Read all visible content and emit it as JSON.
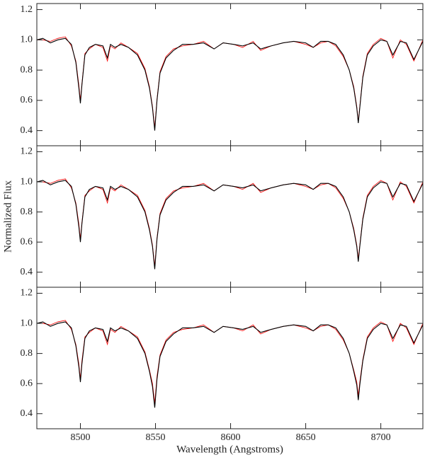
{
  "chart_data": [
    {
      "type": "line",
      "x": [
        8471,
        8475,
        8480,
        8485,
        8490,
        8494,
        8497,
        8499,
        8500,
        8501,
        8503,
        8506,
        8510,
        8515,
        8518,
        8520,
        8523,
        8527,
        8532,
        8538,
        8543,
        8546,
        8548,
        8549.5,
        8551,
        8553,
        8557,
        8562,
        8568,
        8575,
        8582,
        8589,
        8595,
        8602,
        8608,
        8615,
        8620,
        8627,
        8635,
        8642,
        8650,
        8655,
        8660,
        8665,
        8670,
        8675,
        8679,
        8682,
        8684,
        8685,
        8686,
        8688,
        8691,
        8695,
        8700,
        8704,
        8708,
        8713,
        8717,
        8722,
        8728
      ],
      "series": [
        {
          "color": "#000000",
          "values": [
            1.0,
            1.01,
            0.98,
            1.0,
            1.01,
            0.97,
            0.85,
            0.68,
            0.58,
            0.7,
            0.9,
            0.95,
            0.97,
            0.96,
            0.88,
            0.97,
            0.95,
            0.97,
            0.95,
            0.9,
            0.8,
            0.68,
            0.55,
            0.4,
            0.6,
            0.78,
            0.88,
            0.93,
            0.97,
            0.97,
            0.98,
            0.94,
            0.98,
            0.97,
            0.96,
            0.98,
            0.94,
            0.96,
            0.98,
            0.99,
            0.98,
            0.95,
            0.99,
            0.99,
            0.97,
            0.9,
            0.8,
            0.68,
            0.55,
            0.45,
            0.55,
            0.75,
            0.9,
            0.96,
            1.0,
            0.99,
            0.9,
            0.99,
            0.98,
            0.87,
            0.99
          ]
        },
        {
          "color": "#ff0000",
          "values": [
            1.0,
            1.0,
            0.99,
            1.01,
            1.02,
            0.96,
            0.86,
            0.7,
            0.6,
            0.71,
            0.91,
            0.94,
            0.97,
            0.95,
            0.86,
            0.96,
            0.94,
            0.98,
            0.95,
            0.91,
            0.81,
            0.69,
            0.56,
            0.42,
            0.61,
            0.79,
            0.89,
            0.94,
            0.96,
            0.97,
            0.99,
            0.94,
            0.98,
            0.97,
            0.95,
            0.99,
            0.93,
            0.96,
            0.98,
            0.99,
            0.97,
            0.95,
            0.98,
            0.99,
            0.96,
            0.89,
            0.8,
            0.69,
            0.56,
            0.46,
            0.56,
            0.76,
            0.91,
            0.97,
            1.01,
            0.99,
            0.88,
            1.0,
            0.97,
            0.86,
            1.0
          ]
        }
      ],
      "xlim": [
        8471,
        8728
      ],
      "xticks": [
        8500,
        8550,
        8600,
        8650,
        8700
      ],
      "ylim": [
        0.3,
        1.24
      ],
      "yticks": [
        0.4,
        0.6,
        0.8,
        {
          "value": 1,
          "label": "1.0"
        },
        1.2
      ]
    },
    {
      "type": "line",
      "x": [
        8471,
        8475,
        8480,
        8485,
        8490,
        8494,
        8497,
        8499,
        8500,
        8501,
        8503,
        8506,
        8510,
        8515,
        8518,
        8520,
        8523,
        8527,
        8532,
        8538,
        8543,
        8546,
        8548,
        8549.5,
        8551,
        8553,
        8557,
        8562,
        8568,
        8575,
        8582,
        8589,
        8595,
        8602,
        8608,
        8615,
        8620,
        8627,
        8635,
        8642,
        8650,
        8655,
        8660,
        8665,
        8670,
        8675,
        8679,
        8682,
        8684,
        8685,
        8686,
        8688,
        8691,
        8695,
        8700,
        8704,
        8708,
        8713,
        8717,
        8722,
        8728
      ],
      "ylabel": "Normalized Flux",
      "series": [
        {
          "color": "#000000",
          "values": [
            1.0,
            1.01,
            0.98,
            1.0,
            1.01,
            0.97,
            0.85,
            0.7,
            0.6,
            0.72,
            0.9,
            0.95,
            0.97,
            0.96,
            0.88,
            0.97,
            0.95,
            0.97,
            0.95,
            0.9,
            0.8,
            0.68,
            0.57,
            0.42,
            0.62,
            0.78,
            0.88,
            0.93,
            0.97,
            0.97,
            0.98,
            0.94,
            0.98,
            0.97,
            0.96,
            0.98,
            0.94,
            0.96,
            0.98,
            0.99,
            0.98,
            0.95,
            0.99,
            0.99,
            0.97,
            0.9,
            0.8,
            0.68,
            0.57,
            0.47,
            0.57,
            0.75,
            0.9,
            0.96,
            1.0,
            0.99,
            0.9,
            0.99,
            0.98,
            0.87,
            0.99
          ]
        },
        {
          "color": "#ff0000",
          "values": [
            1.0,
            1.0,
            0.99,
            1.01,
            1.02,
            0.96,
            0.86,
            0.72,
            0.62,
            0.73,
            0.91,
            0.94,
            0.97,
            0.95,
            0.86,
            0.96,
            0.94,
            0.98,
            0.95,
            0.91,
            0.81,
            0.69,
            0.58,
            0.44,
            0.63,
            0.79,
            0.89,
            0.94,
            0.96,
            0.97,
            0.99,
            0.94,
            0.98,
            0.97,
            0.95,
            0.99,
            0.93,
            0.96,
            0.98,
            0.99,
            0.97,
            0.95,
            0.98,
            0.99,
            0.96,
            0.89,
            0.8,
            0.69,
            0.58,
            0.49,
            0.58,
            0.76,
            0.91,
            0.97,
            1.01,
            0.99,
            0.88,
            1.0,
            0.97,
            0.86,
            1.0
          ]
        }
      ],
      "xlim": [
        8471,
        8728
      ],
      "xticks": [
        8500,
        8550,
        8600,
        8650,
        8700
      ],
      "ylim": [
        0.3,
        1.24
      ],
      "yticks": [
        0.4,
        0.6,
        0.8,
        {
          "value": 1,
          "label": "1.0"
        },
        1.2
      ]
    },
    {
      "type": "line",
      "x": [
        8471,
        8475,
        8480,
        8485,
        8490,
        8494,
        8497,
        8499,
        8500,
        8501,
        8503,
        8506,
        8510,
        8515,
        8518,
        8520,
        8523,
        8527,
        8532,
        8538,
        8543,
        8546,
        8548,
        8549.5,
        8551,
        8553,
        8557,
        8562,
        8568,
        8575,
        8582,
        8589,
        8595,
        8602,
        8608,
        8615,
        8620,
        8627,
        8635,
        8642,
        8650,
        8655,
        8660,
        8665,
        8670,
        8675,
        8679,
        8682,
        8684,
        8685,
        8686,
        8688,
        8691,
        8695,
        8700,
        8704,
        8708,
        8713,
        8717,
        8722,
        8728
      ],
      "xlabel": "Wavelength (Angstroms)",
      "series": [
        {
          "color": "#000000",
          "values": [
            1.0,
            1.01,
            0.98,
            1.0,
            1.01,
            0.97,
            0.85,
            0.71,
            0.61,
            0.73,
            0.9,
            0.95,
            0.97,
            0.96,
            0.88,
            0.97,
            0.95,
            0.97,
            0.95,
            0.9,
            0.8,
            0.68,
            0.58,
            0.44,
            0.63,
            0.78,
            0.88,
            0.93,
            0.97,
            0.97,
            0.98,
            0.94,
            0.98,
            0.97,
            0.96,
            0.98,
            0.94,
            0.96,
            0.98,
            0.99,
            0.98,
            0.95,
            0.99,
            0.99,
            0.97,
            0.9,
            0.8,
            0.68,
            0.59,
            0.49,
            0.59,
            0.75,
            0.9,
            0.96,
            1.0,
            0.99,
            0.9,
            0.99,
            0.98,
            0.87,
            0.99
          ]
        },
        {
          "color": "#ff0000",
          "values": [
            1.0,
            1.0,
            0.99,
            1.01,
            1.02,
            0.96,
            0.86,
            0.73,
            0.63,
            0.75,
            0.91,
            0.94,
            0.97,
            0.95,
            0.86,
            0.96,
            0.94,
            0.98,
            0.95,
            0.91,
            0.81,
            0.69,
            0.6,
            0.47,
            0.65,
            0.79,
            0.89,
            0.94,
            0.96,
            0.97,
            0.99,
            0.94,
            0.98,
            0.97,
            0.95,
            0.99,
            0.93,
            0.96,
            0.98,
            0.99,
            0.97,
            0.95,
            0.98,
            0.99,
            0.96,
            0.89,
            0.8,
            0.69,
            0.61,
            0.52,
            0.61,
            0.76,
            0.91,
            0.97,
            1.01,
            0.99,
            0.88,
            1.0,
            0.97,
            0.86,
            1.0
          ]
        }
      ],
      "xlim": [
        8471,
        8728
      ],
      "xticks": [
        8500,
        8550,
        8600,
        8650,
        8700
      ],
      "ylim": [
        0.3,
        1.24
      ],
      "yticks": [
        0.4,
        0.6,
        0.8,
        {
          "value": 1,
          "label": "1.0"
        },
        1.2
      ]
    }
  ]
}
